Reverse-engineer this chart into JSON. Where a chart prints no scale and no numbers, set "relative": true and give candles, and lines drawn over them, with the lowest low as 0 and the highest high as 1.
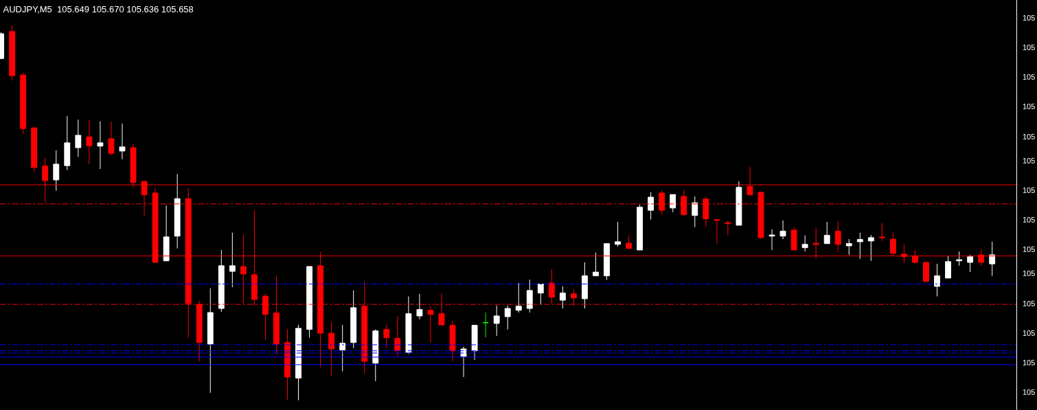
{
  "chart_data": {
    "type": "candlestick",
    "title": "AUDJPY,M5  105.649 105.670 105.636 105.658",
    "relative": true,
    "categories": [
      null,
      null,
      null,
      null,
      null,
      null,
      null,
      null,
      null,
      null,
      null,
      null,
      null,
      null,
      null,
      null,
      null,
      null,
      null,
      null,
      null,
      null,
      null,
      null,
      null,
      null,
      null,
      null,
      null,
      null,
      null,
      null,
      null,
      null,
      null,
      null,
      null,
      null,
      null,
      null,
      null,
      null,
      null,
      null,
      null,
      null,
      null,
      null,
      null,
      null,
      null,
      null,
      null,
      null,
      null,
      null,
      null,
      null,
      null,
      null,
      null,
      null,
      null,
      null,
      null,
      null,
      null,
      null,
      null,
      null,
      null,
      null,
      null,
      null,
      null,
      null,
      null,
      null,
      null,
      null,
      null,
      null,
      null,
      null,
      null,
      null,
      null,
      null,
      null,
      null,
      null
    ],
    "ohlc": [
      [
        0.912,
        0.982,
        0.91,
        0.978
      ],
      [
        0.984,
        1.0,
        0.853,
        0.866
      ],
      [
        0.868,
        0.874,
        0.711,
        0.725
      ],
      [
        0.727,
        0.727,
        0.61,
        0.621
      ],
      [
        0.625,
        0.647,
        0.527,
        0.586
      ],
      [
        0.588,
        0.667,
        0.559,
        0.63
      ],
      [
        0.626,
        0.758,
        0.614,
        0.687
      ],
      [
        0.674,
        0.749,
        0.65,
        0.707
      ],
      [
        0.703,
        0.747,
        0.63,
        0.679
      ],
      [
        0.678,
        0.744,
        0.617,
        0.687
      ],
      [
        0.698,
        0.744,
        0.654,
        0.659
      ],
      [
        0.665,
        0.738,
        0.643,
        0.676
      ],
      [
        0.674,
        0.685,
        0.566,
        0.581
      ],
      [
        0.584,
        0.586,
        0.493,
        0.548
      ],
      [
        0.553,
        0.566,
        0.366,
        0.368
      ],
      [
        0.372,
        0.52,
        0.372,
        0.436
      ],
      [
        0.438,
        0.604,
        0.405,
        0.538
      ],
      [
        0.538,
        0.566,
        0.167,
        0.258
      ],
      [
        0.256,
        0.266,
        0.104,
        0.154
      ],
      [
        0.15,
        0.299,
        0.02,
        0.234
      ],
      [
        0.245,
        0.401,
        0.236,
        0.359
      ],
      [
        0.344,
        0.447,
        0.302,
        0.359
      ],
      [
        0.357,
        0.441,
        0.258,
        0.337
      ],
      [
        0.335,
        0.507,
        0.251,
        0.269
      ],
      [
        0.278,
        0.284,
        0.161,
        0.229
      ],
      [
        0.233,
        0.332,
        0.123,
        0.15
      ],
      [
        0.154,
        0.19,
        0.002,
        0.062
      ],
      [
        0.059,
        0.201,
        0.0,
        0.192
      ],
      [
        0.189,
        0.357,
        0.167,
        0.357
      ],
      [
        0.359,
        0.396,
        0.088,
        0.179
      ],
      [
        0.179,
        0.209,
        0.064,
        0.137
      ],
      [
        0.134,
        0.201,
        0.077,
        0.152
      ],
      [
        0.154,
        0.293,
        0.139,
        0.247
      ],
      [
        0.251,
        0.317,
        0.071,
        0.104
      ],
      [
        0.099,
        0.189,
        0.051,
        0.185
      ],
      [
        0.189,
        0.201,
        0.139,
        0.167
      ],
      [
        0.165,
        0.225,
        0.117,
        0.132
      ],
      [
        0.128,
        0.277,
        0.123,
        0.231
      ],
      [
        0.225,
        0.284,
        0.216,
        0.242
      ],
      [
        0.24,
        0.251,
        0.154,
        0.229
      ],
      [
        0.231,
        0.284,
        0.201,
        0.201
      ],
      [
        0.2,
        0.212,
        0.104,
        0.132
      ],
      [
        0.117,
        0.143,
        0.062,
        0.137
      ],
      [
        0.132,
        0.2,
        0.108,
        0.2
      ],
      [
        0.207,
        0.234,
        0.168,
        0.207
      ],
      [
        0.205,
        0.253,
        0.172,
        0.225
      ],
      [
        0.223,
        0.253,
        0.189,
        0.245
      ],
      [
        0.24,
        0.313,
        0.234,
        0.251
      ],
      [
        0.245,
        0.322,
        0.234,
        0.293
      ],
      [
        0.286,
        0.31,
        0.255,
        0.31
      ],
      [
        0.313,
        0.35,
        0.258,
        0.275
      ],
      [
        0.267,
        0.304,
        0.245,
        0.286
      ],
      [
        0.284,
        0.297,
        0.253,
        0.273
      ],
      [
        0.271,
        0.368,
        0.245,
        0.332
      ],
      [
        0.332,
        0.394,
        0.332,
        0.342
      ],
      [
        0.332,
        0.419,
        0.321,
        0.418
      ],
      [
        0.416,
        0.476,
        0.41,
        0.423
      ],
      [
        0.419,
        0.44,
        0.405,
        0.405
      ],
      [
        0.401,
        0.522,
        0.401,
        0.515
      ],
      [
        0.507,
        0.555,
        0.482,
        0.542
      ],
      [
        0.553,
        0.56,
        0.495,
        0.507
      ],
      [
        0.513,
        0.549,
        0.502,
        0.549
      ],
      [
        0.544,
        0.56,
        0.493,
        0.495
      ],
      [
        0.493,
        0.544,
        0.462,
        0.527
      ],
      [
        0.537,
        0.544,
        0.462,
        0.484
      ],
      [
        0.482,
        0.485,
        0.418,
        0.48
      ],
      [
        0.474,
        0.48,
        0.441,
        0.471
      ],
      [
        0.467,
        0.584,
        0.467,
        0.568
      ],
      [
        0.571,
        0.623,
        0.548,
        0.548
      ],
      [
        0.555,
        0.555,
        0.43,
        0.434
      ],
      [
        0.438,
        0.456,
        0.401,
        0.441
      ],
      [
        0.438,
        0.48,
        0.43,
        0.451
      ],
      [
        0.454,
        0.462,
        0.401,
        0.401
      ],
      [
        0.407,
        0.44,
        0.397,
        0.416
      ],
      [
        0.419,
        0.458,
        0.377,
        0.416
      ],
      [
        0.418,
        0.476,
        0.418,
        0.44
      ],
      [
        0.451,
        0.476,
        0.397,
        0.416
      ],
      [
        0.412,
        0.43,
        0.388,
        0.418
      ],
      [
        0.423,
        0.447,
        0.377,
        0.429
      ],
      [
        0.425,
        0.441,
        0.372,
        0.434
      ],
      [
        0.436,
        0.473,
        0.425,
        0.434
      ],
      [
        0.43,
        0.447,
        0.385,
        0.392
      ],
      [
        0.39,
        0.416,
        0.366,
        0.383
      ],
      [
        0.385,
        0.401,
        0.364,
        0.368
      ],
      [
        0.368,
        0.368,
        0.317,
        0.317
      ],
      [
        0.304,
        0.364,
        0.277,
        0.332
      ],
      [
        0.326,
        0.385,
        0.326,
        0.37
      ],
      [
        0.372,
        0.397,
        0.359,
        0.375
      ],
      [
        0.368,
        0.388,
        0.342,
        0.383
      ],
      [
        0.388,
        0.403,
        0.359,
        0.368
      ],
      [
        0.364,
        0.423,
        0.332,
        0.388
      ]
    ],
    "colors": [
      "#ffffff",
      "#ff0000",
      "#ff0000",
      "#ff0000",
      "#ff0000",
      "#ffffff",
      "#ffffff",
      "#ffffff",
      "#ff0000",
      "#ffffff",
      "#ff0000",
      "#ffffff",
      "#ff0000",
      "#ff0000",
      "#ff0000",
      "#ffffff",
      "#ffffff",
      "#ff0000",
      "#ff0000",
      "#ffffff",
      "#ffffff",
      "#ffffff",
      "#ff0000",
      "#ff0000",
      "#ff0000",
      "#ff0000",
      "#ff0000",
      "#ffffff",
      "#ffffff",
      "#ff0000",
      "#ff0000",
      "#ffffff",
      "#ffffff",
      "#ff0000",
      "#ffffff",
      "#ff0000",
      "#ff0000",
      "#ffffff",
      "#ffffff",
      "#ff0000",
      "#ff0000",
      "#ff0000",
      "#ffffff",
      "#ffffff",
      "#00ff00",
      "#ffffff",
      "#ffffff",
      "#ffffff",
      "#ffffff",
      "#ffffff",
      "#ff0000",
      "#ffffff",
      "#ff0000",
      "#ffffff",
      "#ffffff",
      "#ffffff",
      "#ffffff",
      "#ff0000",
      "#ffffff",
      "#ffffff",
      "#ff0000",
      "#ffffff",
      "#ff0000",
      "#ffffff",
      "#ff0000",
      "#ff0000",
      "#ff0000",
      "#ffffff",
      "#ff0000",
      "#ff0000",
      "#ffffff",
      "#ffffff",
      "#ff0000",
      "#ffffff",
      "#ff0000",
      "#ffffff",
      "#ff0000",
      "#ffffff",
      "#ffffff",
      "#ffffff",
      "#ff0000",
      "#ff0000",
      "#ff0000",
      "#ff0000",
      "#ff0000",
      "#ffffff",
      "#ffffff",
      "#ffffff",
      "#ffffff",
      "#ff0000",
      "#ffffff"
    ],
    "ref_lines": [
      {
        "axis": "y",
        "value": 0.575,
        "color": "#ff0000",
        "line_style": "solid"
      },
      {
        "axis": "y",
        "value": 0.524,
        "color": "#ff0000",
        "line_style": "dashed"
      },
      {
        "axis": "y",
        "value": 0.385,
        "color": "#ff0000",
        "line_style": "solid"
      },
      {
        "axis": "y",
        "value": 0.31,
        "color": "#0000ff",
        "line_style": "dashed"
      },
      {
        "axis": "y",
        "value": 0.256,
        "color": "#ff0000",
        "line_style": "dashed"
      },
      {
        "axis": "y",
        "value": 0.148,
        "color": "#0000ff",
        "line_style": "dashed"
      },
      {
        "axis": "y",
        "value": 0.132,
        "color": "#0000ff",
        "line_style": "dashed"
      },
      {
        "axis": "y",
        "value": 0.126,
        "color": "#0000ff",
        "line_style": "dashed"
      },
      {
        "axis": "y",
        "value": 0.115,
        "color": "#0000ff",
        "line_style": "solid"
      },
      {
        "axis": "y",
        "value": 0.095,
        "color": "#0000ff",
        "line_style": "solid"
      }
    ],
    "annotations": [
      "105",
      "105",
      "105",
      "105",
      "105",
      "105",
      "105",
      "105",
      "105",
      "105",
      "105",
      "105",
      "105",
      "105"
    ],
    "grid": false
  }
}
